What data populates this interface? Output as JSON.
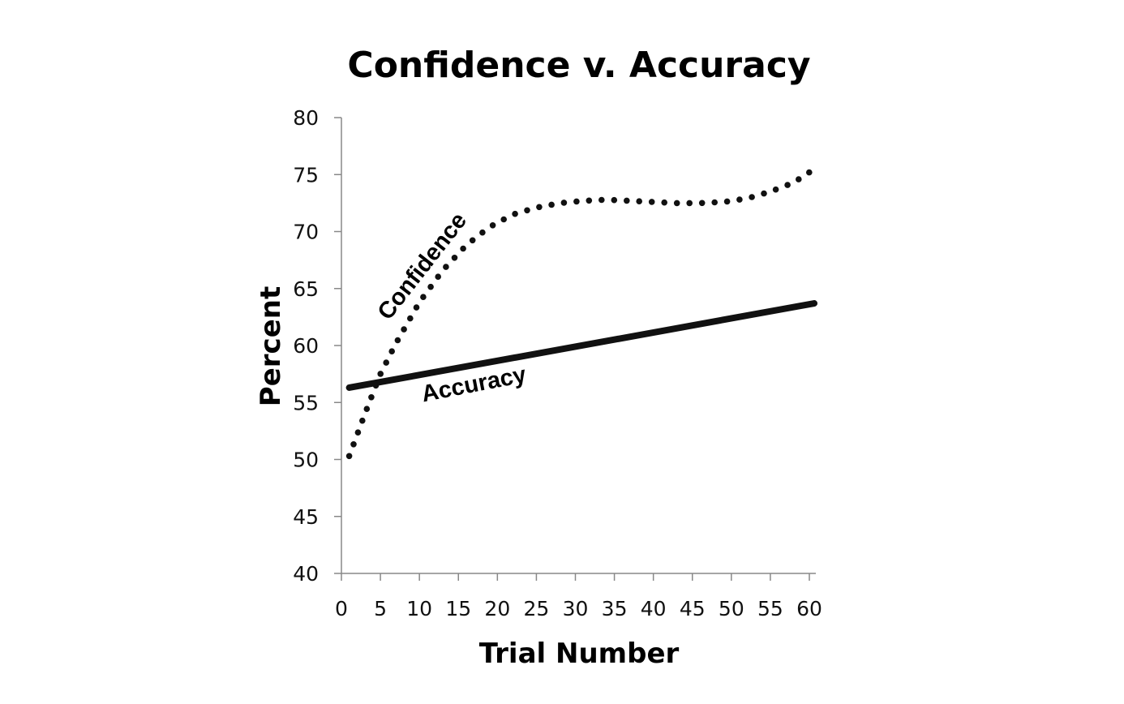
{
  "chart_data": {
    "type": "line",
    "title": "Confidence v. Accuracy",
    "xlabel": "Trial Number",
    "ylabel": "Percent",
    "xlim": [
      0,
      60
    ],
    "ylim": [
      40,
      80
    ],
    "xticks": [
      0,
      5,
      10,
      15,
      20,
      25,
      30,
      35,
      40,
      45,
      50,
      55,
      60
    ],
    "yticks": [
      40,
      45,
      50,
      55,
      60,
      65,
      70,
      75,
      80
    ],
    "grid": false,
    "legend": "none",
    "series": [
      {
        "name": "Confidence",
        "style": "dotted",
        "color": "#111111",
        "x": [
          1,
          3,
          5,
          7,
          10,
          13,
          16,
          19,
          22,
          25,
          28,
          31,
          34,
          37,
          40,
          43,
          46,
          49,
          52,
          55,
          58,
          60
        ],
        "values": [
          50.3,
          54.0,
          57.5,
          60.2,
          63.8,
          66.6,
          68.8,
          70.4,
          71.5,
          72.1,
          72.5,
          72.7,
          72.8,
          72.7,
          72.6,
          72.5,
          72.5,
          72.6,
          72.9,
          73.5,
          74.3,
          75.2
        ]
      },
      {
        "name": "Accuracy",
        "style": "solid",
        "color": "#111111",
        "x": [
          1,
          60
        ],
        "values": [
          56.3,
          63.7
        ]
      }
    ]
  }
}
